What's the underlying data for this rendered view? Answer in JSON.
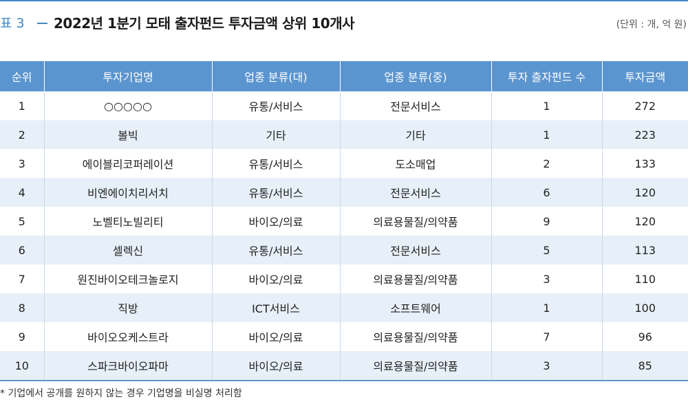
{
  "header": {
    "table_number": "표 3",
    "title": "2022년 1분기 모태 출자펀드 투자금액 상위 10개사",
    "unit": "(단위 : 개, 억 원)"
  },
  "table": {
    "columns": [
      "순위",
      "투자기업명",
      "업종 분류(대)",
      "업종 분류(중)",
      "투자 출자펀드 수",
      "투자금액"
    ],
    "rows": [
      [
        "1",
        "○○○○○",
        "유통/서비스",
        "전문서비스",
        "1",
        "272"
      ],
      [
        "2",
        "볼빅",
        "기타",
        "기타",
        "1",
        "223"
      ],
      [
        "3",
        "에이블리코퍼레이션",
        "유통/서비스",
        "도소매업",
        "2",
        "133"
      ],
      [
        "4",
        "비엔에이치리서치",
        "유통/서비스",
        "전문서비스",
        "6",
        "120"
      ],
      [
        "5",
        "노벨티노빌리티",
        "바이오/의료",
        "의료용물질/의약품",
        "9",
        "120"
      ],
      [
        "6",
        "셀렉신",
        "유통/서비스",
        "전문서비스",
        "5",
        "113"
      ],
      [
        "7",
        "원진바이오테크놀로지",
        "바이오/의료",
        "의료용물질/의약품",
        "3",
        "110"
      ],
      [
        "8",
        "직방",
        "ICT서비스",
        "소프트웨어",
        "1",
        "100"
      ],
      [
        "9",
        "바이오오케스트라",
        "바이오/의료",
        "의료용물질/의약품",
        "7",
        "96"
      ],
      [
        "10",
        "스파크바이오파마",
        "바이오/의료",
        "의료용물질/의약품",
        "3",
        "85"
      ]
    ]
  },
  "footnote": "* 기업에서 공개를 원하지 않는 경우 기업명을 비실명 처리함",
  "colors": {
    "accent": "#3f87c5",
    "header_bg": "#5b95cf",
    "stripe_bg": "#e7f0f8"
  }
}
